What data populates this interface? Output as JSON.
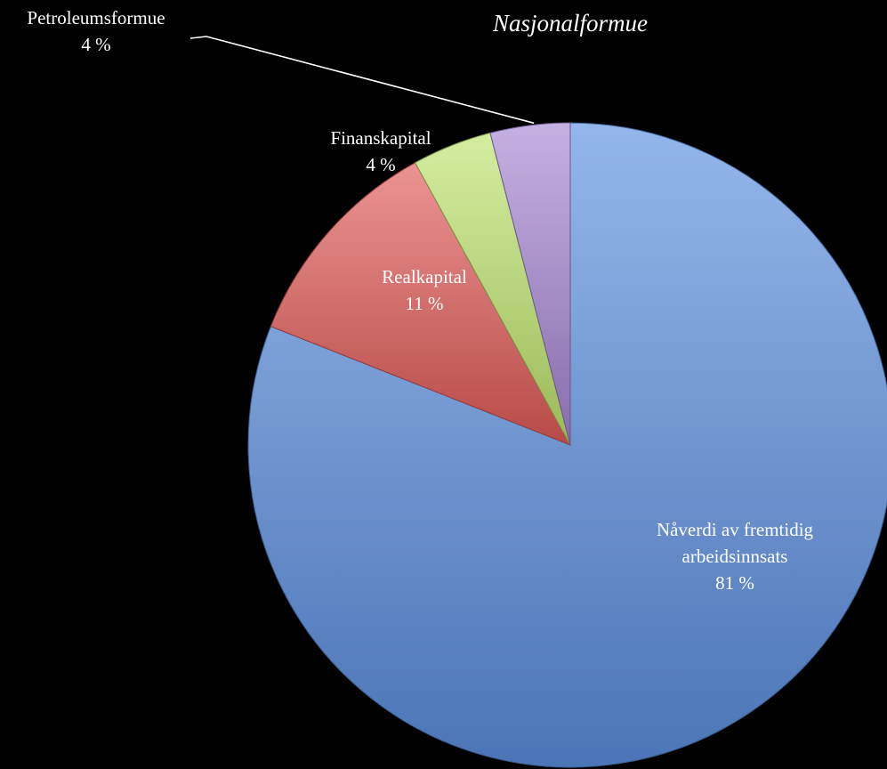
{
  "chart_data": {
    "type": "pie",
    "title": "Nasjonalformue",
    "start": "top",
    "direction": "clockwise",
    "slices": [
      {
        "label_lines": [
          "Nåverdi av fremtidig",
          "arbeidsinnsats"
        ],
        "value_label": "81 %",
        "value": 81,
        "color": "#5b8fde"
      },
      {
        "label_lines": [
          "Realkapital"
        ],
        "value_label": "11 %",
        "value": 11,
        "color": "#e05a57"
      },
      {
        "label_lines": [
          "Finanskapital"
        ],
        "value_label": "4 %",
        "value": 4,
        "color": "#bde36d"
      },
      {
        "label_lines": [
          "Petroleumsformue"
        ],
        "value_label": "4 %",
        "value": 4,
        "color": "#a585d3"
      }
    ]
  }
}
